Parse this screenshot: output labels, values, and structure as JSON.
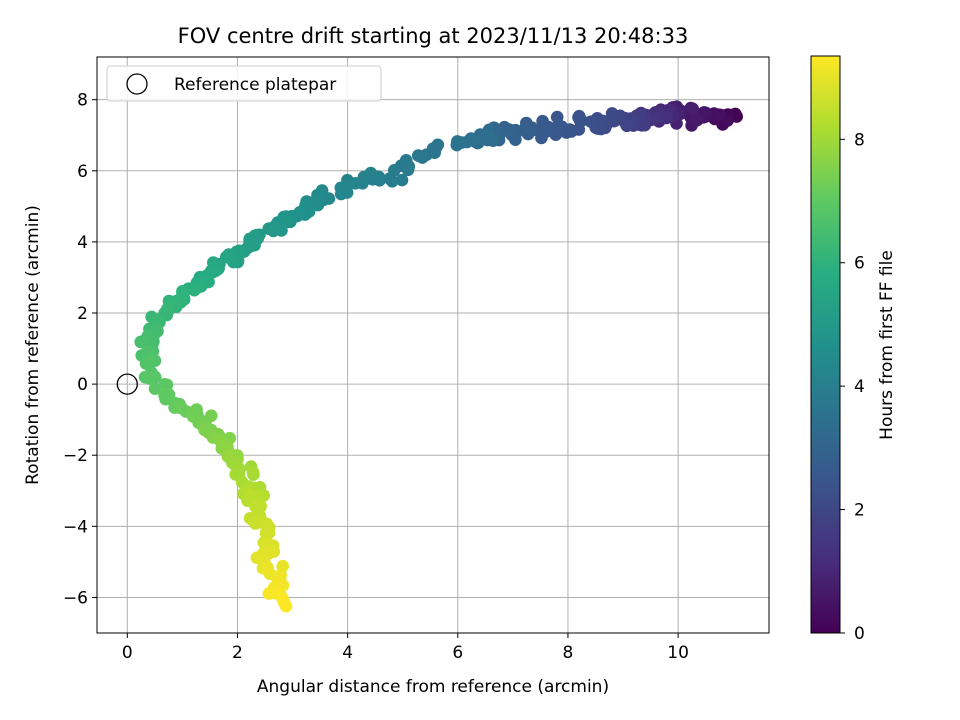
{
  "chart_data": {
    "type": "scatter",
    "title": "FOV centre drift starting at 2023/11/13 20:48:33",
    "xlabel": "Angular distance from reference (arcmin)",
    "ylabel": "Rotation from reference (arcmin)",
    "xlim": [
      -0.55,
      11.65
    ],
    "ylim": [
      -7.0,
      9.2
    ],
    "xticks": [
      "0",
      "2",
      "4",
      "6",
      "8",
      "10"
    ],
    "yticks": [
      "−6",
      "−4",
      "−2",
      "0",
      "2",
      "4",
      "6",
      "8"
    ],
    "grid": true,
    "legend": {
      "placement": "top-left",
      "entries": [
        "Reference platepar"
      ]
    },
    "reference_point": {
      "x": 0,
      "y": 0,
      "label": "Reference platepar"
    },
    "colorbar": {
      "label": "Hours from first FF file",
      "range": [
        0,
        9.35
      ],
      "ticks": [
        "0",
        "2",
        "4",
        "6",
        "8"
      ],
      "colormap": "viridis"
    },
    "series": [
      {
        "path_knots": [
          [
            0.0,
            11.0,
            7.5
          ],
          [
            0.8,
            10.0,
            7.6
          ],
          [
            1.6,
            9.3,
            7.4
          ],
          [
            2.2,
            8.6,
            7.4
          ],
          [
            2.6,
            7.6,
            7.2
          ],
          [
            3.0,
            6.8,
            7.0
          ],
          [
            3.4,
            6.4,
            6.9
          ],
          [
            3.6,
            5.7,
            6.6
          ],
          [
            3.8,
            5.0,
            6.0
          ],
          [
            4.1,
            4.3,
            5.8
          ],
          [
            4.4,
            3.5,
            5.2
          ],
          [
            4.8,
            2.8,
            4.6
          ],
          [
            5.2,
            2.2,
            3.8
          ],
          [
            5.6,
            1.6,
            3.2
          ],
          [
            6.0,
            1.0,
            2.5
          ],
          [
            6.3,
            0.5,
            1.7
          ],
          [
            6.6,
            0.3,
            0.9
          ],
          [
            6.9,
            0.5,
            0.1
          ],
          [
            7.1,
            1.0,
            -0.6
          ],
          [
            7.5,
            1.6,
            -1.4
          ],
          [
            8.0,
            2.1,
            -2.4
          ],
          [
            8.5,
            2.4,
            -3.6
          ],
          [
            9.0,
            2.6,
            -5.0
          ],
          [
            9.35,
            2.8,
            -6.2
          ]
        ]
      }
    ]
  }
}
